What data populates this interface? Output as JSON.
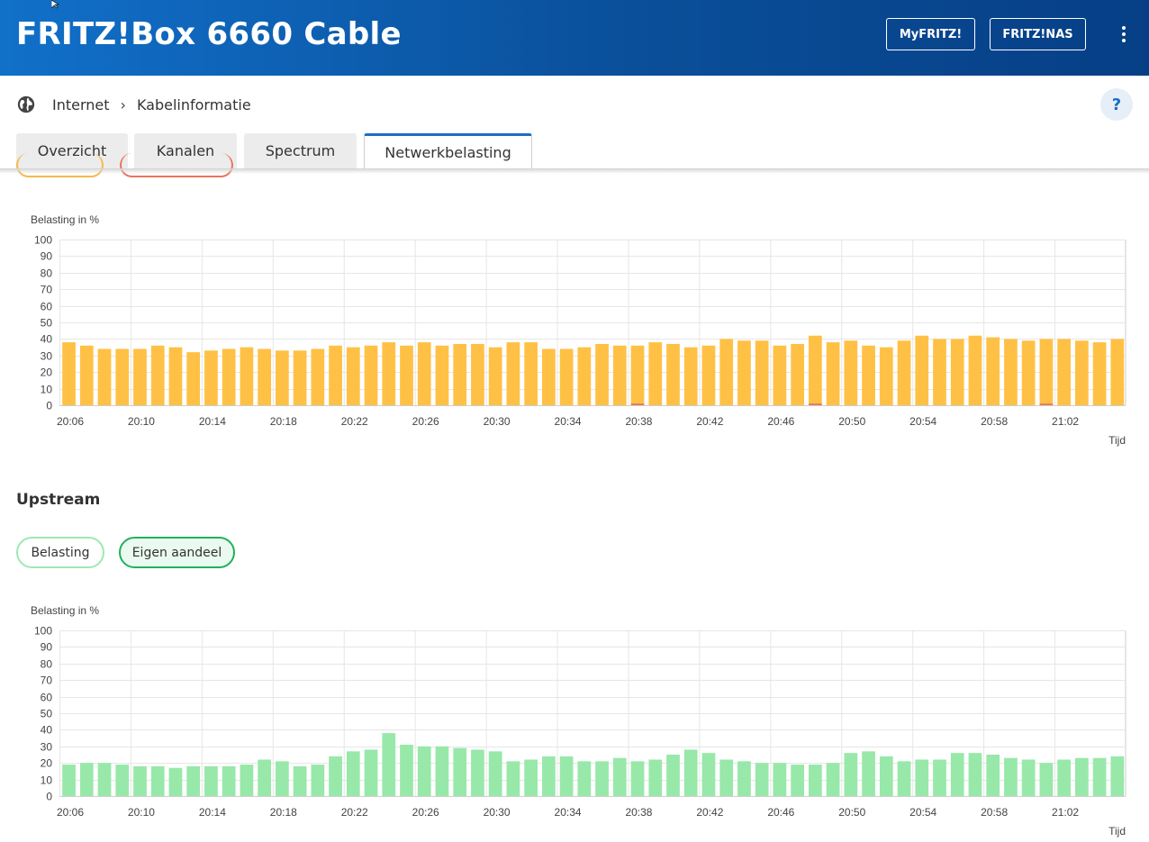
{
  "header": {
    "title": "FRITZ!Box 6660 Cable",
    "myfritz_label": "MyFRITZ!",
    "nas_label": "FRITZ!NAS"
  },
  "breadcrumb": {
    "items": [
      "Internet",
      "Kabelinformatie"
    ]
  },
  "help_label": "?",
  "tabs": [
    {
      "label": "Overzicht",
      "active": false
    },
    {
      "label": "Kanalen",
      "active": false
    },
    {
      "label": "Spectrum",
      "active": false
    },
    {
      "label": "Netwerkbelasting",
      "active": true
    }
  ],
  "upstream": {
    "title": "Upstream",
    "toggles": [
      "Belasting",
      "Eigen aandeel"
    ]
  },
  "colors": {
    "downstream_load": "#ffc145",
    "downstream_own": "#e8775a",
    "upstream_load": "#98e8aa",
    "upstream_own": "#21b15a",
    "header_blue": "#0a5aa8"
  },
  "chart_data": [
    {
      "type": "bar",
      "ylabel": "Belasting in %",
      "xlabel": "Tijd",
      "ylim": [
        0,
        100
      ],
      "yticks": [
        0,
        10,
        20,
        30,
        40,
        50,
        60,
        70,
        80,
        90,
        100
      ],
      "xticks": [
        "20:06",
        "20:10",
        "20:14",
        "20:18",
        "20:22",
        "20:26",
        "20:30",
        "20:34",
        "20:38",
        "20:42",
        "20:46",
        "20:50",
        "20:54",
        "20:58",
        "21:02"
      ],
      "grid": true,
      "series": [
        {
          "values": [
            38,
            36,
            34,
            34,
            34,
            36,
            35,
            32,
            33,
            34,
            35,
            34,
            33,
            33,
            34,
            36,
            35,
            36,
            38,
            36,
            38,
            36,
            37,
            37,
            35,
            38,
            38,
            34,
            34,
            35,
            37,
            36,
            36,
            38,
            37,
            35,
            36,
            40,
            39,
            39,
            36,
            37,
            42,
            38,
            39,
            36,
            35,
            39,
            42,
            40,
            40,
            42,
            41,
            40,
            39,
            40,
            40,
            39,
            38,
            40
          ]
        },
        {
          "values": [
            0,
            0,
            0,
            0,
            0,
            0,
            0,
            0,
            0,
            0,
            0,
            0,
            0,
            0,
            0,
            0,
            0,
            0,
            0,
            0,
            0,
            0,
            0,
            0,
            0,
            0,
            0,
            0,
            0,
            0,
            0,
            0,
            1,
            0,
            0,
            0,
            0,
            0,
            0,
            0,
            0,
            0,
            1,
            0,
            0,
            0,
            0,
            0,
            0,
            0,
            0,
            0,
            0,
            0,
            0,
            1,
            0,
            0,
            0,
            0
          ]
        }
      ]
    },
    {
      "type": "bar",
      "ylabel": "Belasting in %",
      "xlabel": "Tijd",
      "ylim": [
        0,
        100
      ],
      "yticks": [
        0,
        10,
        20,
        30,
        40,
        50,
        60,
        70,
        80,
        90,
        100
      ],
      "xticks": [
        "20:06",
        "20:10",
        "20:14",
        "20:18",
        "20:22",
        "20:26",
        "20:30",
        "20:34",
        "20:38",
        "20:42",
        "20:46",
        "20:50",
        "20:54",
        "20:58",
        "21:02"
      ],
      "grid": true,
      "series": [
        {
          "values": [
            19,
            20,
            20,
            19,
            18,
            18,
            17,
            18,
            18,
            18,
            19,
            22,
            21,
            18,
            19,
            24,
            27,
            28,
            38,
            31,
            30,
            30,
            29,
            28,
            27,
            21,
            22,
            24,
            24,
            21,
            21,
            23,
            21,
            22,
            25,
            28,
            26,
            22,
            21,
            20,
            20,
            19,
            19,
            20,
            26,
            27,
            24,
            21,
            22,
            22,
            26,
            26,
            25,
            23,
            22,
            20,
            22,
            23,
            23,
            24
          ]
        }
      ]
    }
  ]
}
